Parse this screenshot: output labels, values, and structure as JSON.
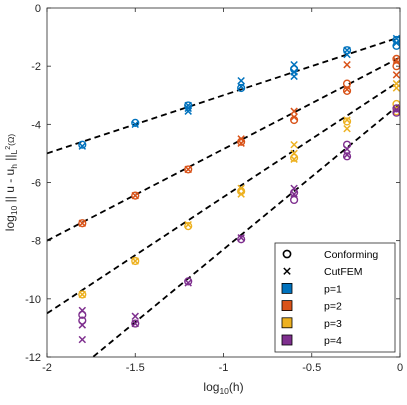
{
  "chart_data": {
    "type": "scatter",
    "x_label": {
      "main": "log",
      "sub": "10",
      "rest": "(h)"
    },
    "y_label": {
      "main": "log",
      "sub": "10",
      "rest": " || u - u",
      "sub2": "h",
      "rest2": " ||",
      "sub3": "L",
      "sup3": "2",
      "rest3": "(Ω)"
    },
    "xlim": [
      -2,
      0
    ],
    "ylim": [
      -12,
      0
    ],
    "x_ticks": [
      {
        "v": -2,
        "label": "-2"
      },
      {
        "v": -1.5,
        "label": "-1.5"
      },
      {
        "v": -1,
        "label": "-1"
      },
      {
        "v": -0.5,
        "label": "-0.5"
      },
      {
        "v": 0,
        "label": "0"
      }
    ],
    "y_ticks": [
      {
        "v": 0,
        "label": "0"
      },
      {
        "v": -2,
        "label": "-2"
      },
      {
        "v": -4,
        "label": "-4"
      },
      {
        "v": -6,
        "label": "-6"
      },
      {
        "v": -8,
        "label": "-8"
      },
      {
        "v": -10,
        "label": "-10"
      },
      {
        "v": -12,
        "label": "-12"
      }
    ],
    "colors": {
      "p1": "#0072bd",
      "p2": "#d95319",
      "p3": "#edb120",
      "p4": "#7e2f8e",
      "axis": "#262626"
    },
    "trend_lines": [
      {
        "key": "p1",
        "x": [
          -2,
          0
        ],
        "y": [
          -5,
          -1
        ]
      },
      {
        "key": "p2",
        "x": [
          -2,
          0
        ],
        "y": [
          -8,
          -1.7
        ]
      },
      {
        "key": "p3",
        "x": [
          -2,
          0
        ],
        "y": [
          -10.5,
          -2.5
        ]
      },
      {
        "key": "p4",
        "x": [
          -2,
          0
        ],
        "y": [
          -13.3,
          -3.3
        ]
      }
    ],
    "series": [
      {
        "name": "p=1",
        "key": "p1",
        "conforming": [
          [
            -1.8,
            -4.7
          ],
          [
            -1.5,
            -3.95
          ],
          [
            -1.2,
            -3.35
          ],
          [
            -0.9,
            -2.75
          ],
          [
            -0.6,
            -2.1
          ],
          [
            -0.3,
            -1.45
          ],
          [
            -0.02,
            -1.1
          ],
          [
            -0.02,
            -1.3
          ]
        ],
        "cutfem": [
          [
            -1.8,
            -4.75
          ],
          [
            -1.5,
            -4.0
          ],
          [
            -1.2,
            -3.35
          ],
          [
            -1.2,
            -3.45
          ],
          [
            -1.2,
            -3.55
          ],
          [
            -0.9,
            -2.5
          ],
          [
            -0.9,
            -2.7
          ],
          [
            -0.6,
            -1.95
          ],
          [
            -0.6,
            -2.2
          ],
          [
            -0.6,
            -2.35
          ],
          [
            -0.3,
            -1.45
          ],
          [
            -0.3,
            -1.6
          ],
          [
            -0.02,
            -1.05
          ],
          [
            -0.02,
            -1.2
          ]
        ]
      },
      {
        "name": "p=2",
        "key": "p2",
        "conforming": [
          [
            -1.8,
            -7.4
          ],
          [
            -1.5,
            -6.45
          ],
          [
            -1.2,
            -5.55
          ],
          [
            -0.9,
            -4.6
          ],
          [
            -0.6,
            -3.85
          ],
          [
            -0.3,
            -2.6
          ],
          [
            -0.3,
            -2.85
          ],
          [
            -0.02,
            -1.75
          ],
          [
            -0.02,
            -2.0
          ]
        ],
        "cutfem": [
          [
            -1.8,
            -7.4
          ],
          [
            -1.5,
            -6.45
          ],
          [
            -1.2,
            -5.55
          ],
          [
            -0.9,
            -4.5
          ],
          [
            -0.9,
            -4.65
          ],
          [
            -0.6,
            -3.55
          ],
          [
            -0.6,
            -3.75
          ],
          [
            -0.3,
            -1.95
          ],
          [
            -0.3,
            -2.8
          ],
          [
            -0.02,
            -1.8
          ],
          [
            -0.02,
            -2.3
          ]
        ]
      },
      {
        "name": "p=3",
        "key": "p3",
        "conforming": [
          [
            -1.8,
            -9.85
          ],
          [
            -1.5,
            -8.7
          ],
          [
            -1.2,
            -7.5
          ],
          [
            -0.9,
            -6.3
          ],
          [
            -0.6,
            -5.15
          ],
          [
            -0.3,
            -3.9
          ],
          [
            -0.02,
            -3.3
          ],
          [
            -0.02,
            -3.55
          ]
        ],
        "cutfem": [
          [
            -1.8,
            -9.85
          ],
          [
            -1.5,
            -8.7
          ],
          [
            -1.2,
            -7.45
          ],
          [
            -0.9,
            -6.2
          ],
          [
            -0.9,
            -6.4
          ],
          [
            -0.6,
            -4.7
          ],
          [
            -0.6,
            -5.0
          ],
          [
            -0.6,
            -5.2
          ],
          [
            -0.3,
            -3.85
          ],
          [
            -0.3,
            -4.15
          ],
          [
            -0.02,
            -2.6
          ],
          [
            -0.02,
            -2.75
          ]
        ]
      },
      {
        "name": "p=4",
        "key": "p4",
        "conforming": [
          [
            -1.8,
            -10.55
          ],
          [
            -1.8,
            -10.75
          ],
          [
            -1.5,
            -10.85
          ],
          [
            -1.2,
            -9.4
          ],
          [
            -0.9,
            -7.95
          ],
          [
            -0.6,
            -6.35
          ],
          [
            -0.6,
            -6.6
          ],
          [
            -0.3,
            -4.7
          ],
          [
            -0.3,
            -5.1
          ],
          [
            -0.02,
            -3.45
          ],
          [
            -0.02,
            -3.6
          ]
        ],
        "cutfem": [
          [
            -1.8,
            -10.4
          ],
          [
            -1.8,
            -10.9
          ],
          [
            -1.8,
            -11.4
          ],
          [
            -1.5,
            -10.6
          ],
          [
            -1.5,
            -10.85
          ],
          [
            -1.2,
            -9.45
          ],
          [
            -0.9,
            -7.9
          ],
          [
            -0.6,
            -6.2
          ],
          [
            -0.6,
            -6.4
          ],
          [
            -0.3,
            -4.85
          ],
          [
            -0.3,
            -5.05
          ],
          [
            -0.02,
            -3.5
          ]
        ]
      }
    ],
    "legend": {
      "placement": "bottom-right",
      "entries": [
        {
          "label": "Conforming",
          "kind": "circle"
        },
        {
          "label": "CutFEM",
          "kind": "cross"
        },
        {
          "label": "p=1",
          "kind": "swatch",
          "key": "p1"
        },
        {
          "label": "p=2",
          "kind": "swatch",
          "key": "p2"
        },
        {
          "label": "p=3",
          "kind": "swatch",
          "key": "p3"
        },
        {
          "label": "p=4",
          "kind": "swatch",
          "key": "p4"
        }
      ]
    }
  }
}
